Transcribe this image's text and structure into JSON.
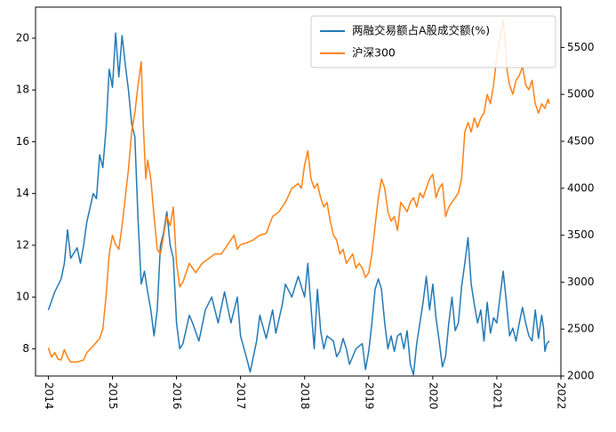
{
  "chart_data": {
    "type": "line",
    "title": "",
    "xlabel": "",
    "ylabel_left": "",
    "ylabel_right": "",
    "xlim": [
      2013.8,
      2022.0
    ],
    "ylim_left": [
      6.95,
      21.2
    ],
    "ylim_right": [
      2000,
      5930
    ],
    "x_ticks": [
      "2014",
      "2015",
      "2016",
      "2017",
      "2018",
      "2019",
      "2020",
      "2021",
      "2022"
    ],
    "x_tick_rotation": 90,
    "y_left_ticks": [
      "8",
      "10",
      "12",
      "14",
      "16",
      "18",
      "20"
    ],
    "y_right_ticks": [
      "2000",
      "2500",
      "3000",
      "3500",
      "4000",
      "4500",
      "5000",
      "5500"
    ],
    "grid": false,
    "legend_position": "top-right",
    "series": [
      {
        "name": "两融交易额占A股成交额(%)",
        "axis": "left",
        "color": "#1f77b4",
        "points": [
          [
            2014.0,
            9.5
          ],
          [
            2014.1,
            10.2
          ],
          [
            2014.2,
            10.7
          ],
          [
            2014.25,
            11.3
          ],
          [
            2014.3,
            12.6
          ],
          [
            2014.35,
            11.5
          ],
          [
            2014.45,
            11.9
          ],
          [
            2014.5,
            11.3
          ],
          [
            2014.55,
            12.0
          ],
          [
            2014.6,
            12.9
          ],
          [
            2014.7,
            14.0
          ],
          [
            2014.75,
            13.8
          ],
          [
            2014.8,
            15.5
          ],
          [
            2014.85,
            15.0
          ],
          [
            2014.9,
            16.5
          ],
          [
            2014.95,
            18.8
          ],
          [
            2015.0,
            18.1
          ],
          [
            2015.05,
            20.2
          ],
          [
            2015.1,
            18.5
          ],
          [
            2015.15,
            20.1
          ],
          [
            2015.2,
            19.0
          ],
          [
            2015.25,
            18.0
          ],
          [
            2015.3,
            16.7
          ],
          [
            2015.35,
            16.2
          ],
          [
            2015.4,
            13.0
          ],
          [
            2015.45,
            10.5
          ],
          [
            2015.5,
            11.0
          ],
          [
            2015.55,
            10.2
          ],
          [
            2015.6,
            9.5
          ],
          [
            2015.65,
            8.5
          ],
          [
            2015.7,
            9.5
          ],
          [
            2015.75,
            12.0
          ],
          [
            2015.8,
            12.5
          ],
          [
            2015.85,
            13.3
          ],
          [
            2015.9,
            12.0
          ],
          [
            2015.95,
            11.5
          ],
          [
            2016.0,
            9.0
          ],
          [
            2016.05,
            8.0
          ],
          [
            2016.1,
            8.2
          ],
          [
            2016.2,
            9.3
          ],
          [
            2016.25,
            9.0
          ],
          [
            2016.35,
            8.3
          ],
          [
            2016.45,
            9.5
          ],
          [
            2016.55,
            10.0
          ],
          [
            2016.65,
            9.0
          ],
          [
            2016.75,
            10.2
          ],
          [
            2016.85,
            9.0
          ],
          [
            2016.95,
            10.0
          ],
          [
            2017.0,
            8.5
          ],
          [
            2017.1,
            7.6
          ],
          [
            2017.15,
            7.1
          ],
          [
            2017.25,
            8.3
          ],
          [
            2017.3,
            9.3
          ],
          [
            2017.4,
            8.4
          ],
          [
            2017.5,
            9.5
          ],
          [
            2017.55,
            8.6
          ],
          [
            2017.65,
            9.7
          ],
          [
            2017.7,
            10.5
          ],
          [
            2017.8,
            10.0
          ],
          [
            2017.9,
            10.8
          ],
          [
            2018.0,
            10.0
          ],
          [
            2018.05,
            11.3
          ],
          [
            2018.1,
            9.6
          ],
          [
            2018.15,
            8.0
          ],
          [
            2018.2,
            10.3
          ],
          [
            2018.25,
            8.7
          ],
          [
            2018.3,
            8.0
          ],
          [
            2018.35,
            8.5
          ],
          [
            2018.45,
            8.3
          ],
          [
            2018.5,
            7.7
          ],
          [
            2018.55,
            7.9
          ],
          [
            2018.6,
            8.4
          ],
          [
            2018.65,
            8.0
          ],
          [
            2018.7,
            7.4
          ],
          [
            2018.8,
            8.0
          ],
          [
            2018.9,
            8.2
          ],
          [
            2018.95,
            7.2
          ],
          [
            2019.0,
            7.9
          ],
          [
            2019.05,
            9.0
          ],
          [
            2019.1,
            10.3
          ],
          [
            2019.15,
            10.7
          ],
          [
            2019.2,
            10.3
          ],
          [
            2019.25,
            9.0
          ],
          [
            2019.3,
            8.0
          ],
          [
            2019.35,
            8.5
          ],
          [
            2019.4,
            7.9
          ],
          [
            2019.45,
            8.5
          ],
          [
            2019.5,
            8.6
          ],
          [
            2019.55,
            8.0
          ],
          [
            2019.6,
            8.7
          ],
          [
            2019.65,
            7.4
          ],
          [
            2019.7,
            7.0
          ],
          [
            2019.75,
            8.2
          ],
          [
            2019.85,
            9.8
          ],
          [
            2019.9,
            10.8
          ],
          [
            2019.95,
            9.5
          ],
          [
            2020.0,
            10.5
          ],
          [
            2020.05,
            9.2
          ],
          [
            2020.1,
            8.3
          ],
          [
            2020.15,
            7.3
          ],
          [
            2020.2,
            7.7
          ],
          [
            2020.25,
            9.0
          ],
          [
            2020.3,
            10.0
          ],
          [
            2020.35,
            8.7
          ],
          [
            2020.4,
            9.0
          ],
          [
            2020.45,
            10.4
          ],
          [
            2020.5,
            11.3
          ],
          [
            2020.55,
            12.3
          ],
          [
            2020.6,
            10.5
          ],
          [
            2020.65,
            9.7
          ],
          [
            2020.7,
            9.0
          ],
          [
            2020.75,
            9.5
          ],
          [
            2020.8,
            8.3
          ],
          [
            2020.85,
            9.8
          ],
          [
            2020.9,
            8.6
          ],
          [
            2020.95,
            9.2
          ],
          [
            2021.0,
            9.0
          ],
          [
            2021.05,
            10.0
          ],
          [
            2021.1,
            11.0
          ],
          [
            2021.15,
            9.8
          ],
          [
            2021.2,
            8.5
          ],
          [
            2021.25,
            8.8
          ],
          [
            2021.3,
            8.3
          ],
          [
            2021.35,
            9.0
          ],
          [
            2021.4,
            9.6
          ],
          [
            2021.45,
            9.0
          ],
          [
            2021.5,
            8.5
          ],
          [
            2021.55,
            8.3
          ],
          [
            2021.6,
            9.5
          ],
          [
            2021.65,
            8.4
          ],
          [
            2021.7,
            9.3
          ],
          [
            2021.73,
            8.8
          ],
          [
            2021.75,
            7.9
          ],
          [
            2021.78,
            8.2
          ],
          [
            2021.82,
            8.3
          ]
        ]
      },
      {
        "name": "沪深300",
        "axis": "right",
        "color": "#ff7f0e",
        "points": [
          [
            2014.0,
            2300
          ],
          [
            2014.05,
            2200
          ],
          [
            2014.1,
            2250
          ],
          [
            2014.15,
            2180
          ],
          [
            2014.2,
            2170
          ],
          [
            2014.25,
            2280
          ],
          [
            2014.3,
            2200
          ],
          [
            2014.35,
            2150
          ],
          [
            2014.45,
            2150
          ],
          [
            2014.55,
            2170
          ],
          [
            2014.6,
            2250
          ],
          [
            2014.7,
            2320
          ],
          [
            2014.8,
            2400
          ],
          [
            2014.85,
            2500
          ],
          [
            2014.9,
            2850
          ],
          [
            2014.95,
            3300
          ],
          [
            2015.0,
            3500
          ],
          [
            2015.05,
            3400
          ],
          [
            2015.1,
            3350
          ],
          [
            2015.15,
            3600
          ],
          [
            2015.2,
            3900
          ],
          [
            2015.25,
            4200
          ],
          [
            2015.3,
            4600
          ],
          [
            2015.35,
            4800
          ],
          [
            2015.4,
            5100
          ],
          [
            2015.45,
            5350
          ],
          [
            2015.48,
            4700
          ],
          [
            2015.52,
            4100
          ],
          [
            2015.55,
            4300
          ],
          [
            2015.6,
            4100
          ],
          [
            2015.65,
            3700
          ],
          [
            2015.7,
            3350
          ],
          [
            2015.75,
            3300
          ],
          [
            2015.8,
            3500
          ],
          [
            2015.85,
            3700
          ],
          [
            2015.9,
            3600
          ],
          [
            2015.95,
            3800
          ],
          [
            2016.0,
            3200
          ],
          [
            2016.05,
            2950
          ],
          [
            2016.1,
            3000
          ],
          [
            2016.2,
            3200
          ],
          [
            2016.3,
            3100
          ],
          [
            2016.4,
            3200
          ],
          [
            2016.5,
            3250
          ],
          [
            2016.6,
            3300
          ],
          [
            2016.7,
            3300
          ],
          [
            2016.8,
            3400
          ],
          [
            2016.9,
            3500
          ],
          [
            2016.95,
            3350
          ],
          [
            2017.0,
            3400
          ],
          [
            2017.1,
            3420
          ],
          [
            2017.2,
            3450
          ],
          [
            2017.3,
            3500
          ],
          [
            2017.4,
            3520
          ],
          [
            2017.5,
            3700
          ],
          [
            2017.6,
            3750
          ],
          [
            2017.7,
            3850
          ],
          [
            2017.8,
            4000
          ],
          [
            2017.9,
            4050
          ],
          [
            2017.95,
            4000
          ],
          [
            2018.0,
            4250
          ],
          [
            2018.05,
            4400
          ],
          [
            2018.1,
            4100
          ],
          [
            2018.15,
            4000
          ],
          [
            2018.2,
            4050
          ],
          [
            2018.25,
            3900
          ],
          [
            2018.3,
            3800
          ],
          [
            2018.35,
            3850
          ],
          [
            2018.4,
            3650
          ],
          [
            2018.45,
            3500
          ],
          [
            2018.5,
            3450
          ],
          [
            2018.55,
            3300
          ],
          [
            2018.6,
            3350
          ],
          [
            2018.65,
            3200
          ],
          [
            2018.7,
            3250
          ],
          [
            2018.75,
            3300
          ],
          [
            2018.8,
            3150
          ],
          [
            2018.85,
            3200
          ],
          [
            2018.9,
            3150
          ],
          [
            2018.95,
            3050
          ],
          [
            2019.0,
            3100
          ],
          [
            2019.05,
            3300
          ],
          [
            2019.1,
            3600
          ],
          [
            2019.15,
            3900
          ],
          [
            2019.2,
            4100
          ],
          [
            2019.25,
            4000
          ],
          [
            2019.3,
            3750
          ],
          [
            2019.35,
            3650
          ],
          [
            2019.4,
            3700
          ],
          [
            2019.45,
            3550
          ],
          [
            2019.5,
            3850
          ],
          [
            2019.55,
            3800
          ],
          [
            2019.6,
            3750
          ],
          [
            2019.65,
            3850
          ],
          [
            2019.7,
            3900
          ],
          [
            2019.75,
            3800
          ],
          [
            2019.8,
            3950
          ],
          [
            2019.85,
            3900
          ],
          [
            2019.9,
            4000
          ],
          [
            2019.95,
            4100
          ],
          [
            2020.0,
            4150
          ],
          [
            2020.05,
            3900
          ],
          [
            2020.1,
            4000
          ],
          [
            2020.15,
            4050
          ],
          [
            2020.2,
            3700
          ],
          [
            2020.25,
            3800
          ],
          [
            2020.3,
            3850
          ],
          [
            2020.35,
            3900
          ],
          [
            2020.4,
            3950
          ],
          [
            2020.45,
            4100
          ],
          [
            2020.5,
            4600
          ],
          [
            2020.55,
            4700
          ],
          [
            2020.6,
            4600
          ],
          [
            2020.65,
            4750
          ],
          [
            2020.7,
            4650
          ],
          [
            2020.75,
            4750
          ],
          [
            2020.8,
            4800
          ],
          [
            2020.85,
            5000
          ],
          [
            2020.9,
            4900
          ],
          [
            2020.95,
            5100
          ],
          [
            2021.0,
            5400
          ],
          [
            2021.05,
            5600
          ],
          [
            2021.1,
            5800
          ],
          [
            2021.13,
            5550
          ],
          [
            2021.16,
            5250
          ],
          [
            2021.2,
            5100
          ],
          [
            2021.25,
            5000
          ],
          [
            2021.3,
            5150
          ],
          [
            2021.35,
            5200
          ],
          [
            2021.4,
            5300
          ],
          [
            2021.45,
            5100
          ],
          [
            2021.5,
            5050
          ],
          [
            2021.55,
            5150
          ],
          [
            2021.6,
            4900
          ],
          [
            2021.65,
            4800
          ],
          [
            2021.7,
            4900
          ],
          [
            2021.75,
            4850
          ],
          [
            2021.8,
            4950
          ],
          [
            2021.82,
            4900
          ]
        ]
      }
    ]
  }
}
